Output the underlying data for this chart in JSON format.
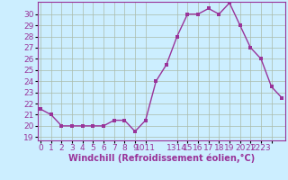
{
  "x": [
    0,
    1,
    2,
    3,
    4,
    5,
    6,
    7,
    8,
    9,
    10,
    11,
    12,
    13,
    14,
    15,
    16,
    17,
    18,
    19,
    20,
    21,
    22,
    23
  ],
  "y": [
    21.5,
    21.0,
    20.0,
    20.0,
    20.0,
    20.0,
    20.0,
    20.5,
    20.5,
    19.5,
    20.5,
    24.0,
    25.5,
    28.0,
    30.0,
    30.0,
    30.5,
    30.0,
    31.0,
    29.0,
    27.0,
    26.0,
    23.5,
    22.5
  ],
  "line_color": "#993399",
  "marker_color": "#993399",
  "bg_color": "#cceeff",
  "grid_color": "#aabbaa",
  "xlabel": "Windchill (Refroidissement éolien,°C)",
  "xlabel_color": "#993399",
  "tick_color": "#993399",
  "spine_color": "#993399",
  "ylim": [
    19,
    30.5
  ],
  "xlim": [
    0,
    23
  ],
  "yticks": [
    19,
    20,
    21,
    22,
    23,
    24,
    25,
    26,
    27,
    28,
    29,
    30
  ],
  "font_size": 6.5,
  "marker_size": 2.5,
  "line_width": 1.0
}
